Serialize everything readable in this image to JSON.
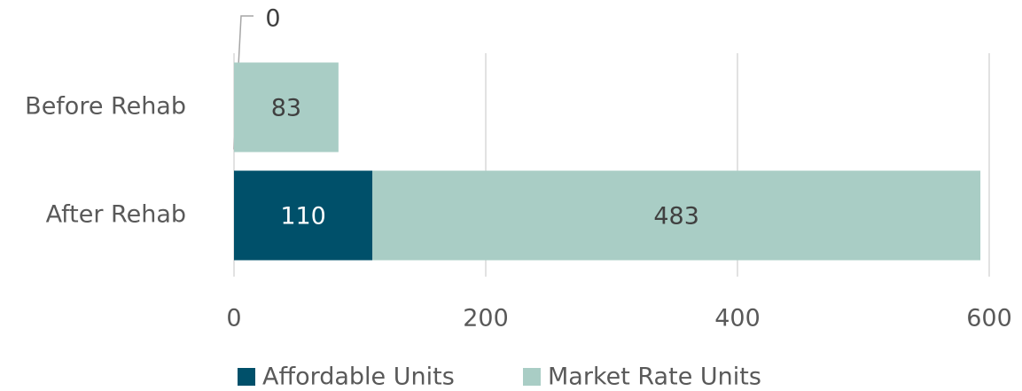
{
  "chart_data": {
    "type": "bar",
    "orientation": "horizontal",
    "stacked": true,
    "categories": [
      "Before Rehab",
      "After Rehab"
    ],
    "series": [
      {
        "name": "Affordable Units",
        "color": "#00506a",
        "values": [
          0,
          110
        ]
      },
      {
        "name": "Market Rate Units",
        "color": "#a9cdc5",
        "values": [
          83,
          483
        ]
      }
    ],
    "xlim": [
      0,
      600
    ],
    "xticks": [
      0,
      200,
      400,
      600
    ],
    "grid": true,
    "legend": "bottom"
  }
}
